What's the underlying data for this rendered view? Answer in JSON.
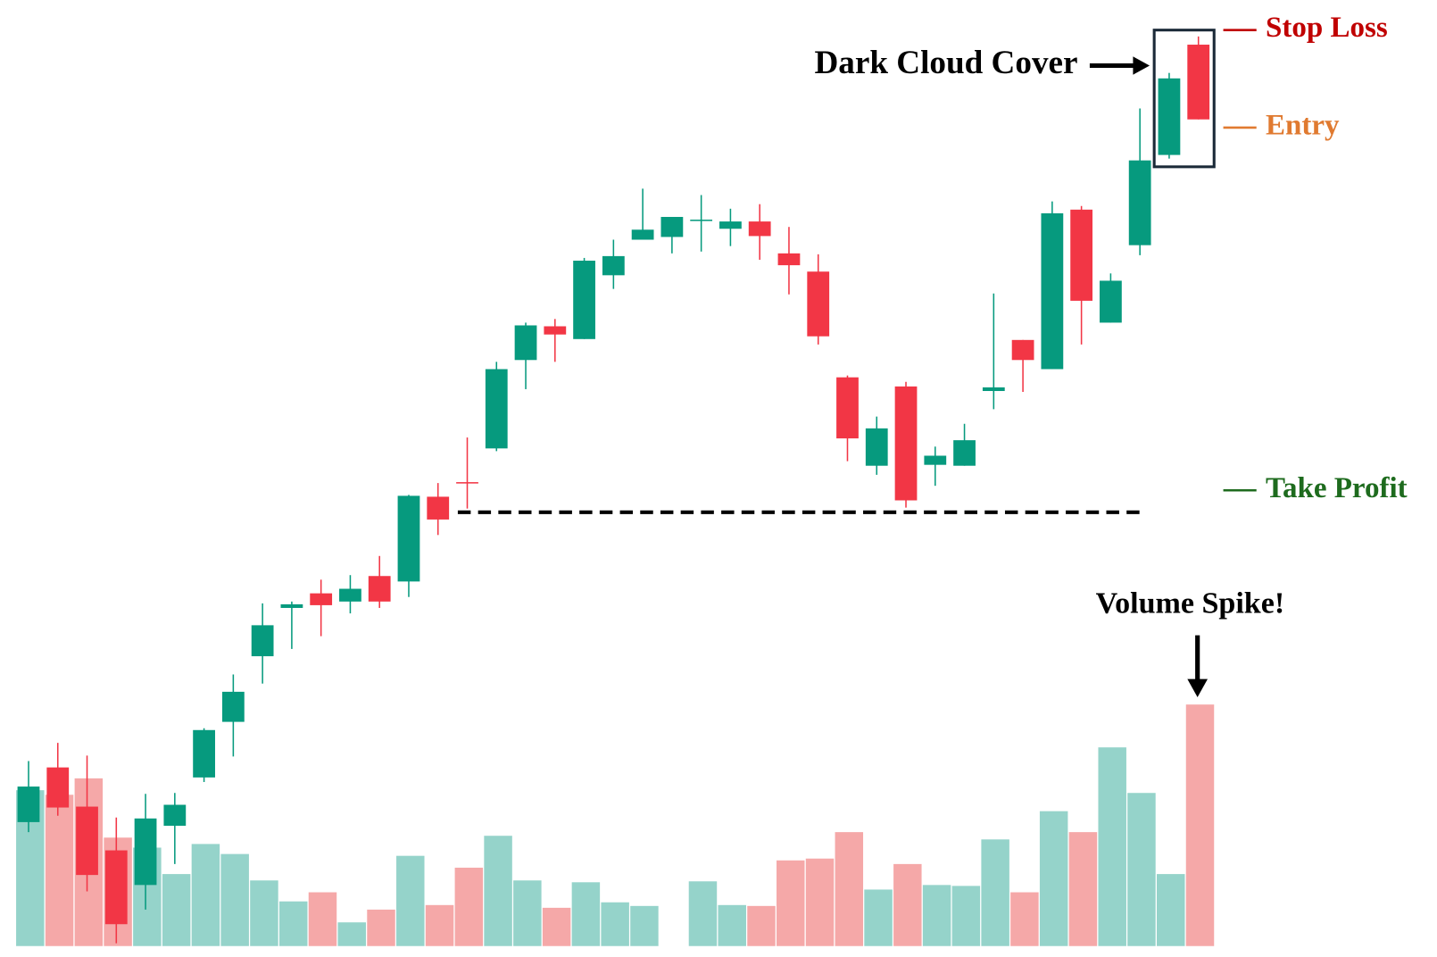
{
  "chart_data": {
    "type": "candlestick",
    "up_color": "#069a7e",
    "down_color": "#f23645",
    "volume_up_color": "#95d3ca",
    "volume_down_color": "#f5a8a8",
    "ylim": [
      0,
      1050
    ],
    "vlim": [
      0,
      1038
    ],
    "open": [
      148,
      208,
      165,
      117,
      79,
      144,
      197,
      258,
      330,
      383,
      399,
      390,
      418,
      412,
      505,
      521,
      558,
      655,
      692,
      678,
      748,
      787,
      790,
      808,
      799,
      807,
      772,
      752,
      636,
      539,
      626,
      540,
      539,
      621,
      677,
      645,
      820,
      696,
      781,
      880,
      1001
    ],
    "high": [
      215,
      235,
      221,
      153,
      179,
      180,
      251,
      310,
      388,
      390,
      414,
      419,
      440,
      507,
      520,
      570,
      653,
      696,
      700,
      767,
      787,
      843,
      812,
      836,
      821,
      826,
      801,
      771,
      638,
      593,
      631,
      560,
      585,
      728,
      677,
      829,
      824,
      750,
      931,
      970,
      1010
    ],
    "low": [
      137,
      155,
      72,
      15,
      52,
      102,
      192,
      220,
      300,
      338,
      352,
      377,
      383,
      395,
      463,
      492,
      555,
      623,
      653,
      678,
      733,
      787,
      772,
      774,
      780,
      765,
      727,
      672,
      544,
      529,
      493,
      517,
      539,
      601,
      620,
      645,
      672,
      696,
      770,
      876,
      919
    ],
    "close": [
      187,
      164,
      90,
      36,
      152,
      167,
      249,
      291,
      364,
      387,
      386,
      404,
      390,
      506,
      480,
      520,
      645,
      693,
      683,
      764,
      769,
      798,
      812,
      809,
      807,
      791,
      759,
      681,
      569,
      580,
      501,
      550,
      567,
      625,
      655,
      816,
      720,
      742,
      874,
      964,
      919
    ],
    "volume": [
      171,
      166,
      184,
      119,
      108,
      79,
      112,
      101,
      72,
      49,
      59,
      26,
      40,
      99,
      45,
      86,
      121,
      72,
      42,
      70,
      48,
      44,
      null,
      71,
      45,
      44,
      94,
      96,
      125,
      62,
      90,
      67,
      66,
      117,
      59,
      148,
      125,
      218,
      168,
      79,
      265
    ],
    "pattern_label": "Dark Cloud Cover",
    "volume_label": "Volume Spike!",
    "dashed_level": 488,
    "levels": [
      {
        "label": "Stop Loss",
        "value": 1017,
        "color": "#c00000"
      },
      {
        "label": "Entry",
        "value": 910,
        "color": "#e07a30"
      },
      {
        "label": "Take Profit",
        "value": 512,
        "color": "#1e6b1e"
      }
    ]
  }
}
